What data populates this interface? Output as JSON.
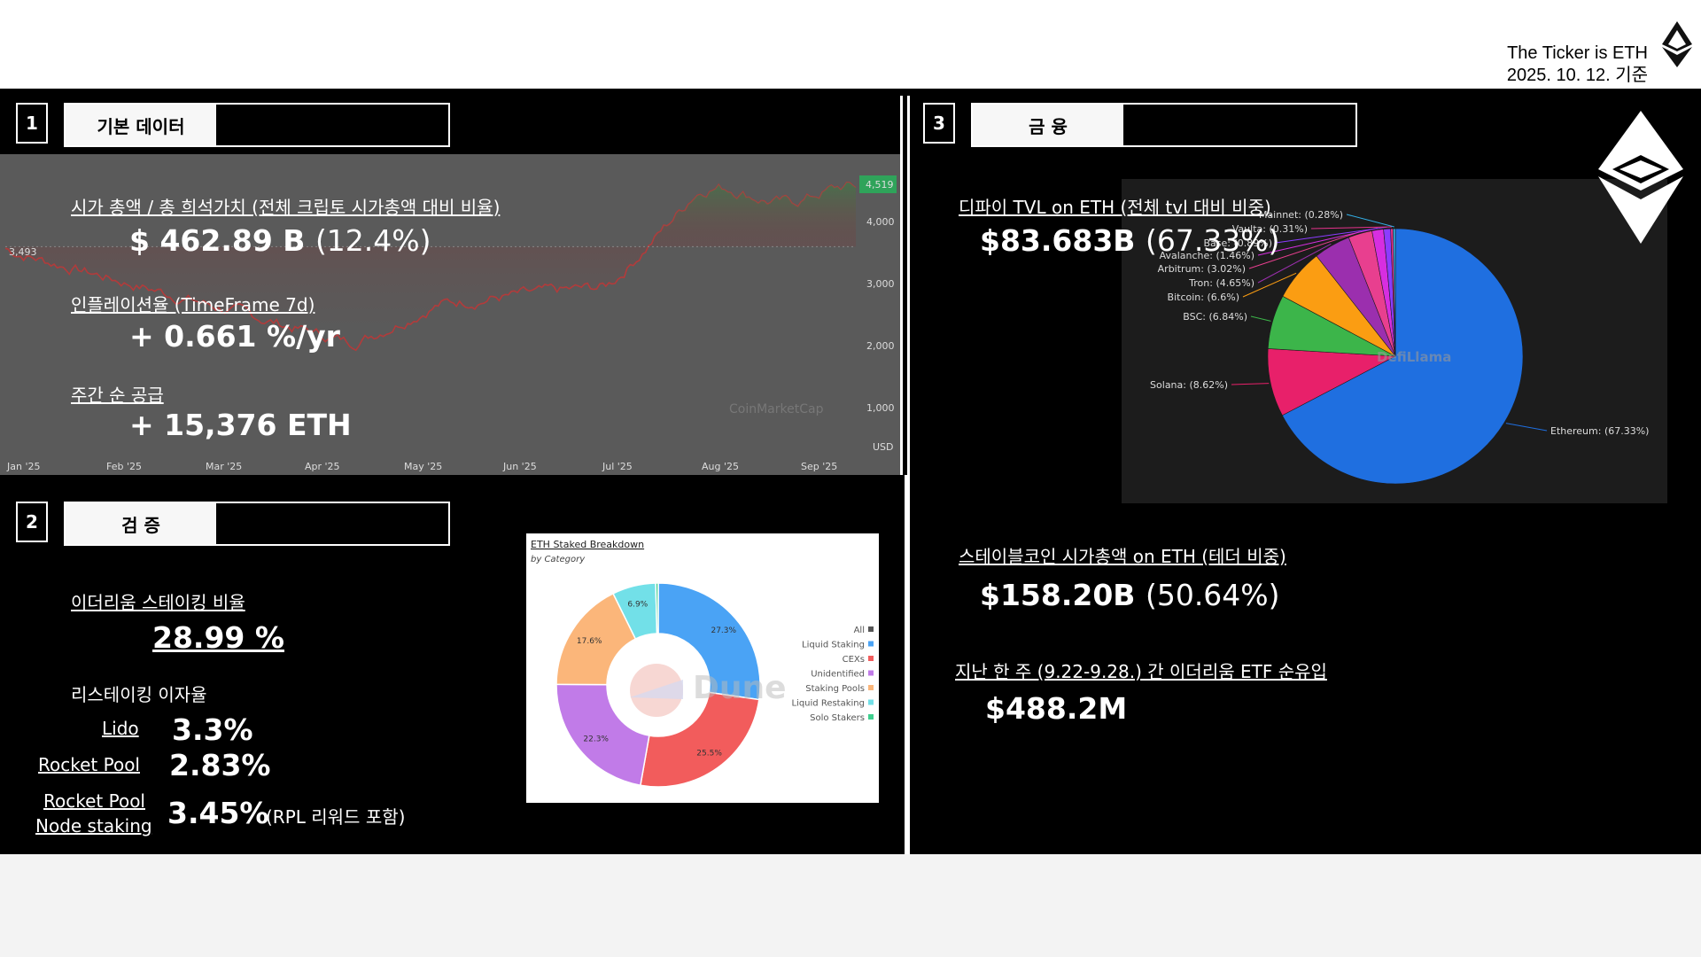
{
  "header": {
    "brand": "The Ticker is ETH",
    "date": "2025. 10. 12. 기준",
    "logo_icon": "ethereum-icon"
  },
  "section1": {
    "number": "1",
    "title": "기본 데이터",
    "marketcap_label": "시가 총액 / 총 희석가치 ",
    "marketcap_label_note": "(전체 크립토 시가총액 대비 비율)",
    "marketcap_value": "$ 462.89 B ",
    "marketcap_ratio": "(12.4%)",
    "inflation_label": "인플레이션율 (TimeFrame 7d)",
    "inflation_value": "+ 0.661 %/yr",
    "supply_label": "주간 순 공급",
    "supply_value": "+ 15,376 ETH"
  },
  "price_chart": {
    "start_label": "3,493",
    "current_label": "4,519",
    "y_ticks": [
      "4,000",
      "3,000",
      "2,000",
      "1,000"
    ],
    "currency": "USD",
    "x_ticks": [
      "Jan '25",
      "Feb '25",
      "Mar '25",
      "Apr '25",
      "May '25",
      "Jun '25",
      "Jul '25",
      "Aug '25",
      "Sep '25"
    ],
    "watermark": "CoinMarketCap"
  },
  "section2": {
    "number": "2",
    "title": "검 증",
    "staking_label": "이더리움 스테이킹 비율",
    "staking_value": "28.99 %",
    "restaking_label": "리스테이킹 이자율",
    "rows": [
      {
        "name": "Lido",
        "value": "3.3%"
      },
      {
        "name": "Rocket Pool",
        "value": "2.83%"
      },
      {
        "name_line1": "Rocket Pool",
        "name_line2": "Node staking",
        "value": "3.45%",
        "note": "(RPL 리워드 포함)"
      }
    ]
  },
  "dune_chart": {
    "title": "ETH Staked Breakdown",
    "subtitle": "by Category",
    "watermark": "Dune",
    "legend": [
      {
        "name": "All",
        "color": "#555555"
      },
      {
        "name": "Liquid Staking",
        "color": "#4aa3f5"
      },
      {
        "name": "CEXs",
        "color": "#f25c5c"
      },
      {
        "name": "Unidentified",
        "color": "#c17be8"
      },
      {
        "name": "Staking Pools",
        "color": "#fbb67a"
      },
      {
        "name": "Liquid Restaking",
        "color": "#72e0e8"
      },
      {
        "name": "Solo Stakers",
        "color": "#3ecf8e"
      }
    ]
  },
  "section3": {
    "number": "3",
    "title": "금 융",
    "tvl_label": "디파이 TVL on ETH (전체 tvl 대비 비중)",
    "tvl_value": "$83.683B ",
    "tvl_ratio": "(67.33%)",
    "stable_label": "스테이블코인 시가총액 on ETH (테더 비중)",
    "stable_value": "$158.20B ",
    "stable_ratio": "(50.64%)",
    "etf_label": "지난 한 주 (9.22-9.28.) 간 이더리움 ETF 순유입",
    "etf_value": "$488.2M"
  },
  "defillama": {
    "watermark": "DefiLlama"
  },
  "chart_data": [
    {
      "type": "pie",
      "title": "ETH Staked Breakdown",
      "subtitle": "by Category",
      "categories": [
        "Liquid Staking",
        "CEXs",
        "Unidentified",
        "Staking Pools",
        "Liquid Restaking",
        "Solo Stakers"
      ],
      "values": [
        27.3,
        25.5,
        22.3,
        17.6,
        6.9,
        0.4
      ],
      "data_labels": [
        "27.3%",
        "25.5%",
        "22.3%",
        "17.6%",
        "6.9%",
        ""
      ],
      "colors": [
        "#4aa3f5",
        "#f25c5c",
        "#c17be8",
        "#fbb67a",
        "#72e0e8",
        "#3ecf8e"
      ]
    },
    {
      "type": "pie",
      "categories": [
        "Ethereum",
        "Solana",
        "BSC",
        "Bitcoin",
        "Tron",
        "Arbitrum",
        "Avalanche",
        "Base",
        "Vaulta",
        "Mainnet"
      ],
      "labels": [
        "Ethereum: (67.33%)",
        "Solana: (8.62%)",
        "BSC: (6.84%)",
        "Bitcoin: (6.6%)",
        "Tron: (4.65%)",
        "Arbitrum: (3.02%)",
        "Avalanche: (1.46%)",
        "Base: (0.89%)",
        "Vaulta: (0.31%)",
        "Mainnet: (0.28%)"
      ],
      "values": [
        67.33,
        8.62,
        6.84,
        6.6,
        4.65,
        3.02,
        1.46,
        0.89,
        0.31,
        0.28
      ],
      "colors": [
        "#1f6fe0",
        "#e8206a",
        "#3cb54a",
        "#fb9d12",
        "#9b2fae",
        "#e83f8f",
        "#d72ee0",
        "#8c3cff",
        "#e6338c",
        "#33b0e8"
      ]
    }
  ]
}
